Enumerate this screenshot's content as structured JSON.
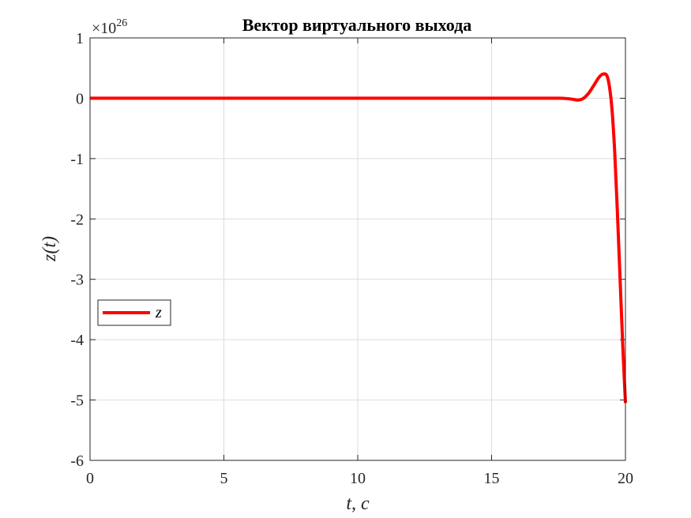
{
  "chart_data": {
    "type": "line",
    "title": "Вектор виртуального выхода",
    "xlabel": "t, c",
    "ylabel": "z(t)",
    "xlim": [
      0,
      20
    ],
    "ylim": [
      -6,
      1
    ],
    "x_ticks": [
      0,
      5,
      10,
      15,
      20
    ],
    "x_tick_labels": [
      "0",
      "5",
      "10",
      "15",
      "20"
    ],
    "y_ticks": [
      1,
      0,
      -1,
      -2,
      -3,
      -4,
      -5,
      -6
    ],
    "y_tick_labels": [
      "1",
      "0",
      "-1",
      "-2",
      "-3",
      "-4",
      "-5",
      "-6"
    ],
    "y_exponent_base": "×10",
    "y_exponent": "26",
    "grid": true,
    "legend_placement": "middle-left",
    "series": [
      {
        "name": "z",
        "color": "#ff0000",
        "x": [
          0,
          5,
          10,
          15,
          17,
          17.5,
          17.8,
          18.0,
          18.2,
          18.4,
          18.6,
          18.8,
          19.0,
          19.15,
          19.3,
          19.4,
          19.5,
          19.6,
          19.7,
          19.8,
          19.9,
          20.0
        ],
        "y": [
          0,
          0,
          0,
          0,
          0,
          0,
          -0.005,
          -0.015,
          -0.03,
          -0.01,
          0.07,
          0.2,
          0.34,
          0.4,
          0.38,
          0.2,
          -0.2,
          -0.9,
          -1.9,
          -3.0,
          -4.1,
          -5.05
        ]
      }
    ]
  }
}
